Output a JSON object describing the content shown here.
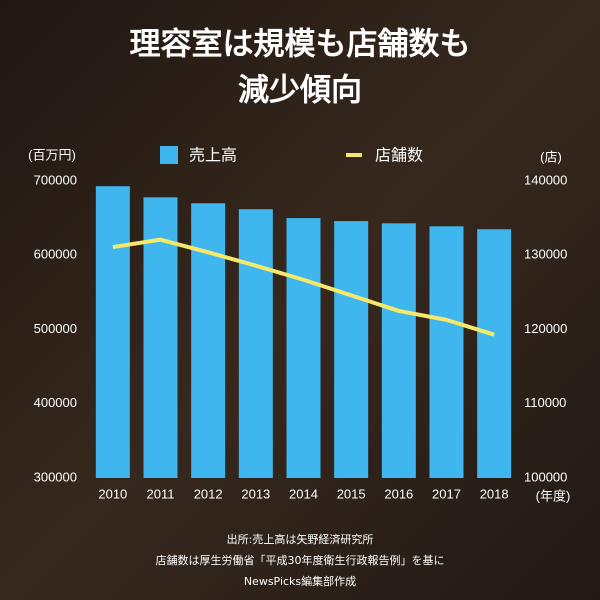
{
  "chart_data": {
    "type": "bar_line",
    "title": [
      "理容室は規模も店舗数も",
      "減少傾向"
    ],
    "y_label": "(百万円)",
    "y2_label": "(店)",
    "x_label": "(年度)",
    "categories": [
      "2010",
      "2011",
      "2012",
      "2013",
      "2014",
      "2015",
      "2016",
      "2017",
      "2018"
    ],
    "series": [
      {
        "name": "売上高",
        "color": "#3fb6ee",
        "kind": "bar",
        "values": [
          693000,
          678000,
          670000,
          662000,
          650000,
          646000,
          643000,
          639000,
          635000
        ]
      },
      {
        "name": "店舗数",
        "color": "#f6e86a",
        "kind": "line",
        "axis": "y2",
        "values": [
          131100,
          132100,
          130400,
          128600,
          126700,
          124600,
          122500,
          121300,
          119300
        ]
      }
    ],
    "ylim": [
      300000,
      700000
    ],
    "yticks": [
      300000,
      400000,
      500000,
      600000,
      700000
    ],
    "y2lim": [
      100000,
      140000
    ],
    "y2ticks": [
      100000,
      110000,
      120000,
      130000,
      140000
    ],
    "notes": [
      "出所:売上高は矢野経済研究所",
      "店舗数は厚生労働省「平成30年度衛生行政報告例」を基に",
      "NewsPicks編集部作成"
    ]
  }
}
